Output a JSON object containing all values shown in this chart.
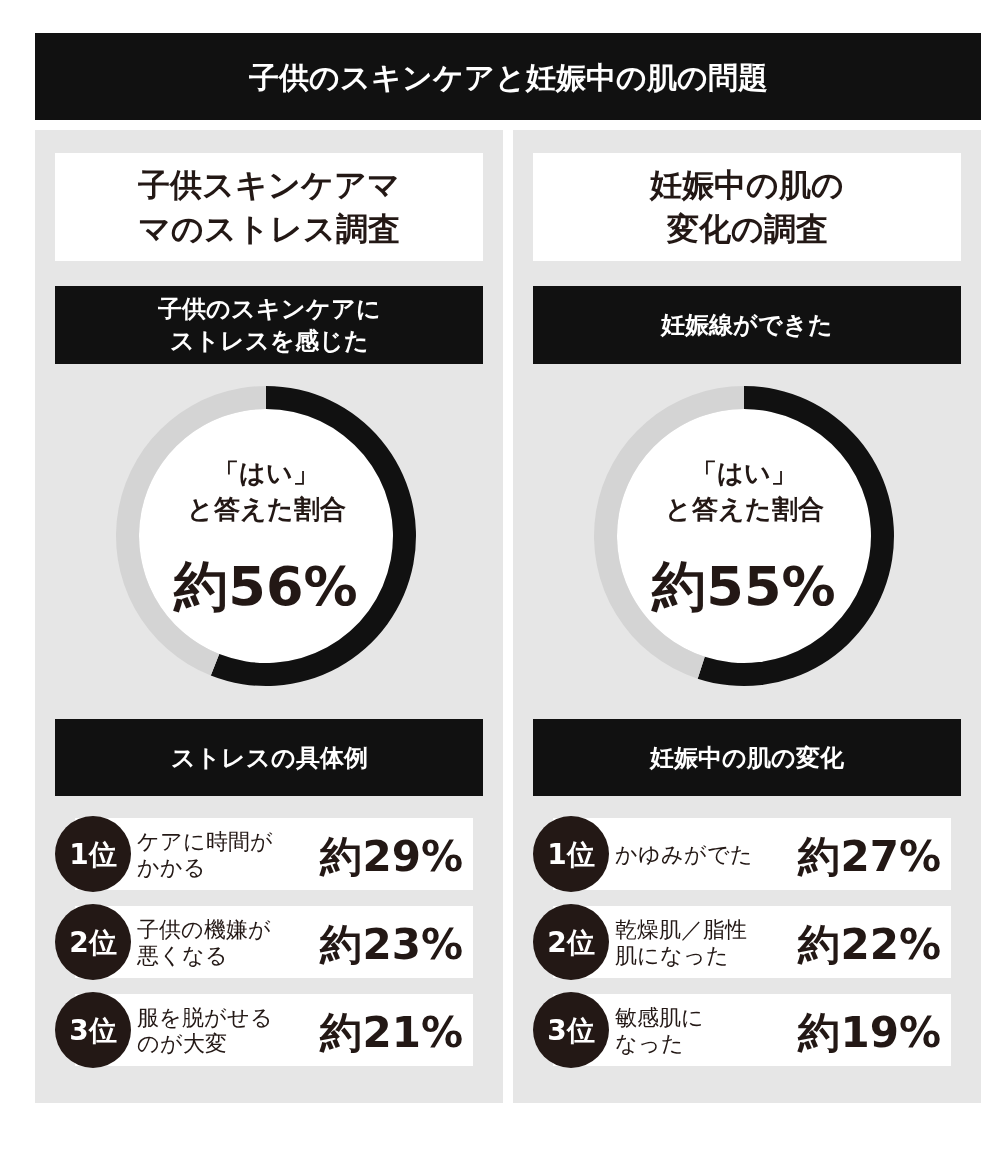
{
  "chart_data": [
    {
      "type": "other",
      "title": "子供のスキンケアと妊娠中の肌の問題"
    },
    {
      "type": "donut",
      "title": "子供スキンケアママのストレス調査",
      "subtitle": "子供のスキンケアにストレスを感じた",
      "categories": [
        null,
        null
      ],
      "values": [
        56,
        44
      ],
      "colors": [
        "#111111",
        "#d4d4d4"
      ],
      "value_labels": [
        "約56%",
        null
      ],
      "annotations": [
        "「はい」と答えた割合"
      ]
    },
    {
      "type": "donut",
      "title": "妊娠中の肌の変化の調査",
      "subtitle": "妊娠線ができた",
      "categories": [
        null,
        null
      ],
      "values": [
        55,
        45
      ],
      "colors": [
        "#111111",
        "#d4d4d4"
      ],
      "value_labels": [
        "約55%",
        null
      ],
      "annotations": [
        "「はい」と答えた割合"
      ]
    },
    {
      "type": "other",
      "title": "ストレスの具体例",
      "categories": [
        "ケアに時間がかかる",
        "子供の機嫌が悪くなる",
        "服を脱がせるのが大変"
      ],
      "values": [
        29,
        23,
        21
      ],
      "value_labels": [
        "約29%",
        "約23%",
        "約21%"
      ],
      "annotations": [
        "1位",
        "2位",
        "3位"
      ]
    },
    {
      "type": "other",
      "title": "妊娠中の肌の変化",
      "categories": [
        "かゆみがでた",
        "乾燥肌／脂性肌になった",
        "敏感肌になった"
      ],
      "values": [
        27,
        22,
        19
      ],
      "value_labels": [
        "約27%",
        "約22%",
        "約19%"
      ],
      "annotations": [
        "1位",
        "2位",
        "3位"
      ]
    }
  ]
}
